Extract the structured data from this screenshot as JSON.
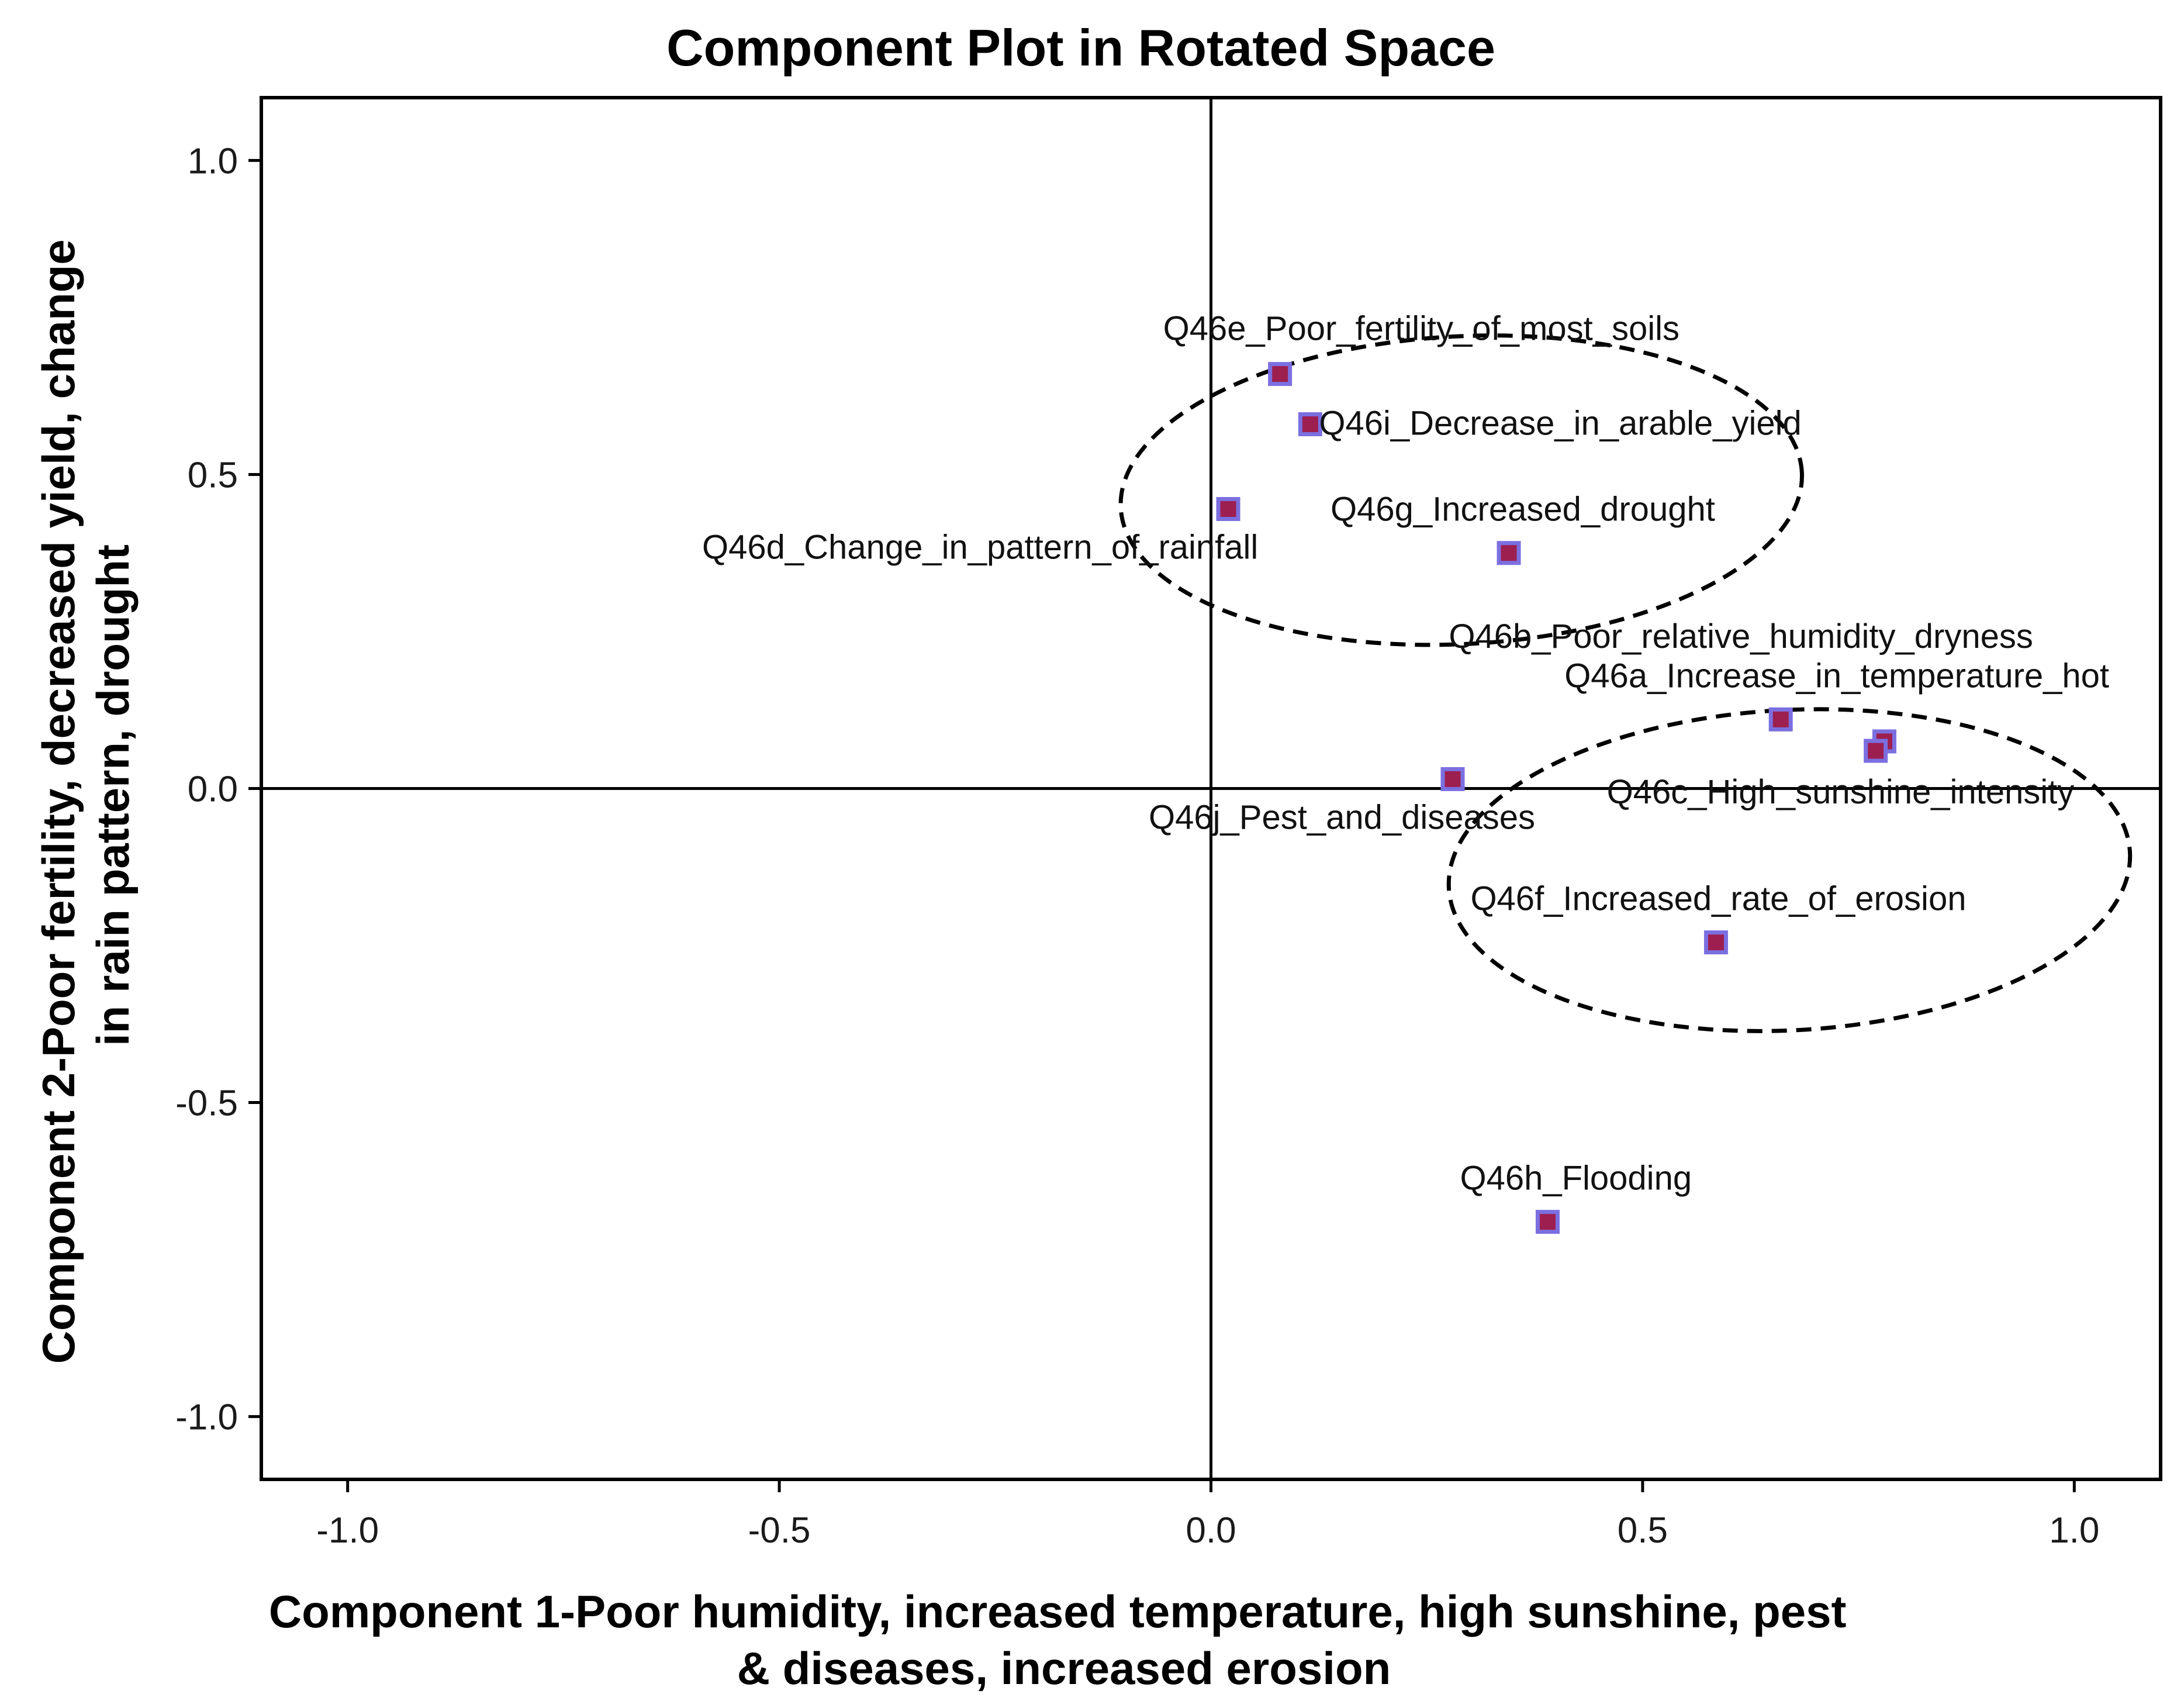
{
  "chart_data": {
    "type": "scatter",
    "title": "Component Plot in Rotated Space",
    "xlabel": "Component 1-Poor humidity, increased temperature, high sunshine, pest & diseases, increased erosion",
    "xlabel_lines": [
      "Component 1-Poor humidity, increased temperature, high sunshine, pest",
      "& diseases, increased erosion"
    ],
    "ylabel": "Component 2-Poor fertility, decreased yield, change in rain pattern, drought",
    "ylabel_lines": [
      "Component 2-Poor fertility, decreased yield, change",
      "in rain pattern, drought"
    ],
    "xlim": [
      -1.1,
      1.1
    ],
    "ylim": [
      -1.1,
      1.1
    ],
    "xticks": [
      {
        "value": -1.0,
        "label": "-1.0"
      },
      {
        "value": -0.5,
        "label": "-0.5"
      },
      {
        "value": 0.0,
        "label": "0.0"
      },
      {
        "value": 0.5,
        "label": "0.5"
      },
      {
        "value": 1.0,
        "label": "1.0"
      }
    ],
    "yticks": [
      {
        "value": -1.0,
        "label": "-1.0"
      },
      {
        "value": -0.5,
        "label": "-0.5"
      },
      {
        "value": 0.0,
        "label": "0.0"
      },
      {
        "value": 0.5,
        "label": "0.5"
      },
      {
        "value": 1.0,
        "label": "1.0"
      }
    ],
    "grid": false,
    "reference_lines": {
      "x0": true,
      "y0": true
    },
    "marker_fill": "#9c1f4f",
    "marker_edge": "#7b6fe0",
    "points": [
      {
        "label": "Q46e_Poor_fertility_of_most_soils",
        "x": 0.08,
        "y": 0.66
      },
      {
        "label": "Q46i_Decrease_in_arable_yield",
        "x": 0.115,
        "y": 0.58
      },
      {
        "label": "Q46d_Change_in_pattern_of_rainfall",
        "x": 0.02,
        "y": 0.445
      },
      {
        "label": "Q46g_Increased_drought",
        "x": 0.345,
        "y": 0.375
      },
      {
        "label": "Q46b_Poor_relative_humidity_dryness",
        "x": 0.78,
        "y": 0.075
      },
      {
        "label": "Q46a_Increase_in_temperature_hot",
        "x": 0.66,
        "y": 0.11
      },
      {
        "label": "Q46c_High_sunshine_intensity",
        "x": 0.77,
        "y": 0.06
      },
      {
        "label": "Q46j_Pest_and_diseases",
        "x": 0.28,
        "y": 0.015
      },
      {
        "label": "Q46f_Increased_rate_of_erosion",
        "x": 0.585,
        "y": -0.245
      },
      {
        "label": "Q46h_Flooding",
        "x": 0.39,
        "y": -0.69
      }
    ],
    "annotations": [
      {
        "type": "dashed-ellipse",
        "cx": 0.29,
        "cy": 0.475,
        "rx": 0.395,
        "ry": 0.245
      },
      {
        "type": "dashed-ellipse",
        "cx": 0.67,
        "cy": -0.13,
        "rx": 0.395,
        "ry": 0.255
      }
    ]
  }
}
